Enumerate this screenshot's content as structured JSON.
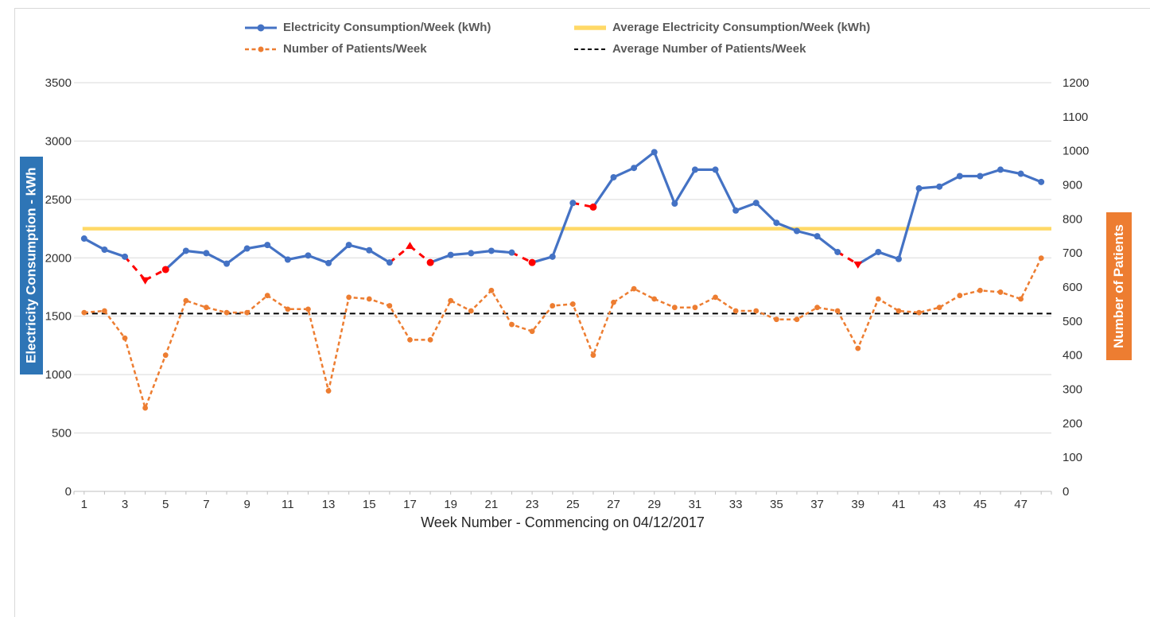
{
  "legend": {
    "items": [
      {
        "label": "Electricity Consumption/Week (kWh)",
        "color": "#4472C4",
        "style": "line-marker"
      },
      {
        "label": "Average Electricity Consumption/Week (kWh)",
        "color": "#FFD966",
        "style": "thick-line"
      },
      {
        "label": "Number of Patients/Week",
        "color": "#ED7D31",
        "style": "dash-marker"
      },
      {
        "label": "Average Number of Patients/Week",
        "color": "#000000",
        "style": "dash-line"
      }
    ]
  },
  "axis_left": {
    "title": "Electricity Consumption - kWh",
    "box_color": "#2E75B6"
  },
  "axis_right": {
    "title": "Number of Patients",
    "box_color": "#ED7D31"
  },
  "axis_x": {
    "title": "Week Number - Commencing on 04/12/2017"
  },
  "colors": {
    "gridline": "#D9D9D9",
    "axis_line": "#BFBFBF",
    "tick_text": "#303030",
    "anomaly_red": "#FF0000"
  },
  "chart_data": {
    "type": "line",
    "x_label": "Week Number - Commencing on 04/12/2017",
    "x": [
      1,
      2,
      3,
      4,
      5,
      6,
      7,
      8,
      9,
      10,
      11,
      12,
      13,
      14,
      15,
      16,
      17,
      18,
      19,
      20,
      21,
      22,
      23,
      24,
      25,
      26,
      27,
      28,
      29,
      30,
      31,
      32,
      33,
      34,
      35,
      36,
      37,
      38,
      39,
      40,
      41,
      42,
      43,
      44,
      45,
      46,
      47,
      48
    ],
    "x_tick_labels": [
      1,
      3,
      5,
      7,
      9,
      11,
      13,
      15,
      17,
      19,
      21,
      23,
      25,
      27,
      29,
      31,
      33,
      35,
      37,
      39,
      41,
      43,
      45,
      47
    ],
    "ylim_left": [
      0,
      3500
    ],
    "ylim_right": [
      0,
      1200
    ],
    "y_ticks_left": [
      0,
      500,
      1000,
      1500,
      2000,
      2500,
      3000,
      3500
    ],
    "y_ticks_right": [
      0,
      100,
      200,
      300,
      400,
      500,
      600,
      700,
      800,
      900,
      1000,
      1100,
      1200
    ],
    "grid": "horizontal",
    "legend_position": "top",
    "series": [
      {
        "name": "Electricity Consumption/Week (kWh)",
        "axis": "left",
        "color": "#4472C4",
        "style": "solid",
        "marker": "circle",
        "values": [
          2165,
          2070,
          2010,
          1810,
          1900,
          2060,
          2040,
          1950,
          2080,
          2110,
          1985,
          2020,
          1955,
          2110,
          2065,
          1960,
          2100,
          1960,
          2025,
          2040,
          2060,
          2045,
          1960,
          2010,
          2470,
          2435,
          2690,
          2770,
          2905,
          2465,
          2755,
          2755,
          2405,
          2470,
          2300,
          2230,
          2185,
          2050,
          1945,
          2050,
          1990,
          2595,
          2610,
          2700,
          2700,
          2755,
          2720,
          2650
        ],
        "anomaly_color": "#FF0000",
        "anomaly_dashed_segments": [
          [
            3,
            5
          ],
          [
            16,
            18
          ],
          [
            22,
            23
          ],
          [
            25,
            26
          ],
          [
            38,
            39
          ]
        ],
        "anomaly_marker_weeks": [
          4,
          5,
          17,
          18,
          23,
          26,
          39
        ],
        "anomaly_marker_shapes": {
          "4": "down",
          "17": "up",
          "39": "down"
        }
      },
      {
        "name": "Number of Patients/Week",
        "axis": "right",
        "color": "#ED7D31",
        "style": "dashed",
        "marker": "circle",
        "values": [
          525,
          530,
          450,
          245,
          400,
          560,
          540,
          525,
          525,
          575,
          535,
          535,
          295,
          570,
          565,
          545,
          445,
          445,
          560,
          530,
          590,
          490,
          470,
          545,
          550,
          400,
          555,
          595,
          565,
          540,
          540,
          570,
          530,
          530,
          505,
          505,
          540,
          530,
          420,
          565,
          530,
          525,
          540,
          575,
          590,
          585,
          565,
          685
        ]
      },
      {
        "name": "Average Electricity Consumption/Week (kWh)",
        "axis": "left",
        "color": "#FFD966",
        "style": "thick",
        "value": 2250
      },
      {
        "name": "Average Number of Patients/Week",
        "axis": "right",
        "color": "#000000",
        "style": "dashed-thin",
        "value": 522
      }
    ]
  }
}
